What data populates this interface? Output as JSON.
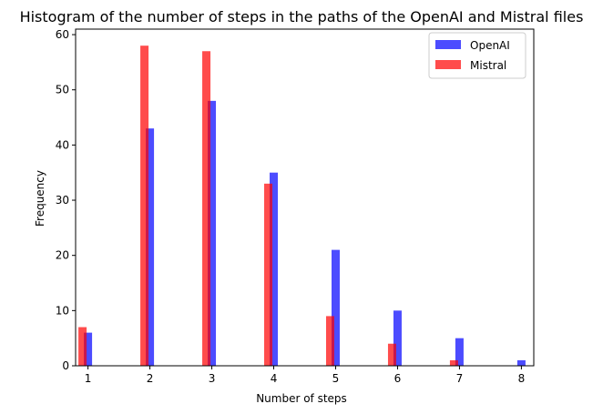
{
  "chart_data": {
    "type": "bar",
    "title": "Histogram of the number of steps in the paths of the OpenAI and Mistral files",
    "xlabel": "Number of steps",
    "ylabel": "Frequency",
    "x_ticks": [
      1,
      2,
      3,
      4,
      5,
      6,
      7,
      8
    ],
    "y_ticks": [
      0,
      10,
      20,
      30,
      40,
      50,
      60
    ],
    "xlim": [
      0.8,
      8.2
    ],
    "ylim": [
      0,
      61
    ],
    "legend_position": "upper-right",
    "series": [
      {
        "name": "OpenAI",
        "color": "#0000ff",
        "opacity": 0.7,
        "x": [
          1,
          2,
          3,
          4,
          5,
          6,
          7,
          8
        ],
        "values": [
          6,
          43,
          48,
          35,
          21,
          10,
          5,
          1
        ]
      },
      {
        "name": "Mistral",
        "color": "#ff0000",
        "opacity": 0.7,
        "x": [
          1,
          2,
          3,
          4,
          5,
          6,
          7
        ],
        "values": [
          7,
          58,
          57,
          33,
          9,
          4,
          1
        ]
      }
    ]
  }
}
